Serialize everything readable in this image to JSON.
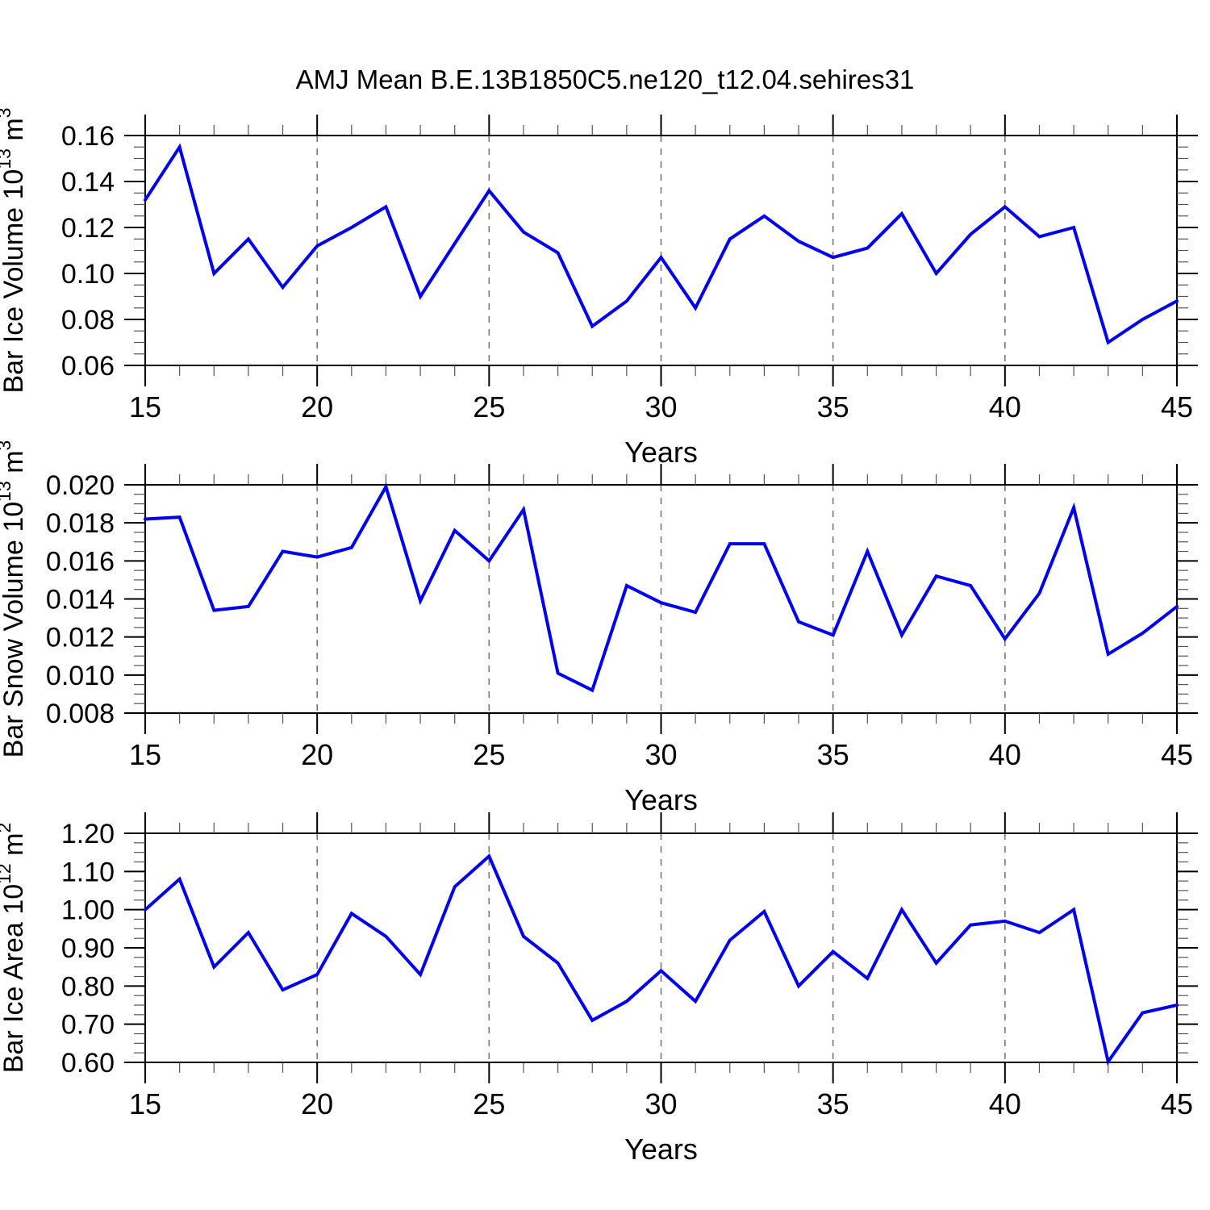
{
  "title": "AMJ Mean B.E.13B1850C5.ne120_t12.04.sehires31",
  "styles": {
    "line_color": "#0000ee",
    "grid_color": "#787878",
    "frame_color": "#000000",
    "minor_tick_color": "#555555",
    "background": "#ffffff"
  },
  "chart_data": [
    {
      "type": "line",
      "name": "bar-ice-volume",
      "ylabel_plain": "Bar Ice Volume 10^13 m^3",
      "ylabel_segments": [
        {
          "text": "Bar Ice Volume 10"
        },
        {
          "text": "13",
          "superscript": true
        },
        {
          "text": " m"
        },
        {
          "text": "3",
          "superscript": true
        }
      ],
      "xlabel": "Years",
      "xlim": [
        15,
        45
      ],
      "ylim": [
        0.06,
        0.16
      ],
      "xtick_values": [
        15,
        20,
        25,
        30,
        35,
        40,
        45
      ],
      "xtick_labels": [
        "15",
        "20",
        "25",
        "30",
        "35",
        "40",
        "45"
      ],
      "x_minor_step": 1,
      "grid_x_values": [
        20,
        25,
        30,
        35,
        40
      ],
      "ytick_values": [
        0.06,
        0.08,
        0.1,
        0.12,
        0.14,
        0.16
      ],
      "ytick_labels": [
        "0.06",
        "0.08",
        "0.10",
        "0.12",
        "0.14",
        "0.16"
      ],
      "y_minor_step": 0.005,
      "x": [
        15,
        16,
        17,
        18,
        19,
        20,
        21,
        22,
        23,
        24,
        25,
        26,
        27,
        28,
        29,
        30,
        31,
        32,
        33,
        34,
        35,
        36,
        37,
        38,
        39,
        40,
        41,
        42,
        43,
        44,
        45
      ],
      "values": [
        0.132,
        0.155,
        0.1,
        0.115,
        0.094,
        0.112,
        0.12,
        0.129,
        0.09,
        0.113,
        0.136,
        0.118,
        0.109,
        0.077,
        0.088,
        0.107,
        0.085,
        0.115,
        0.125,
        0.114,
        0.107,
        0.111,
        0.126,
        0.1,
        0.117,
        0.129,
        0.116,
        0.12,
        0.07,
        0.08,
        0.088
      ]
    },
    {
      "type": "line",
      "name": "bar-snow-volume",
      "ylabel_plain": "Bar Snow Volume 10^13 m^3",
      "ylabel_segments": [
        {
          "text": "Bar Snow Volume 10"
        },
        {
          "text": "13",
          "superscript": true
        },
        {
          "text": " m"
        },
        {
          "text": "3",
          "superscript": true
        }
      ],
      "xlabel": "Years",
      "xlim": [
        15,
        45
      ],
      "ylim": [
        0.008,
        0.02
      ],
      "xtick_values": [
        15,
        20,
        25,
        30,
        35,
        40,
        45
      ],
      "xtick_labels": [
        "15",
        "20",
        "25",
        "30",
        "35",
        "40",
        "45"
      ],
      "x_minor_step": 1,
      "grid_x_values": [
        20,
        25,
        30,
        35,
        40
      ],
      "ytick_values": [
        0.008,
        0.01,
        0.012,
        0.014,
        0.016,
        0.018,
        0.02
      ],
      "ytick_labels": [
        "0.008",
        "0.010",
        "0.012",
        "0.014",
        "0.016",
        "0.018",
        "0.020"
      ],
      "y_minor_step": 0.0005,
      "x": [
        15,
        16,
        17,
        18,
        19,
        20,
        21,
        22,
        23,
        24,
        25,
        26,
        27,
        28,
        29,
        30,
        31,
        32,
        33,
        34,
        35,
        36,
        37,
        38,
        39,
        40,
        41,
        42,
        43,
        44,
        45
      ],
      "values": [
        0.0182,
        0.0183,
        0.0134,
        0.0136,
        0.0165,
        0.0162,
        0.0167,
        0.0199,
        0.0139,
        0.0176,
        0.016,
        0.0187,
        0.0101,
        0.0092,
        0.0147,
        0.0138,
        0.0133,
        0.0169,
        0.0169,
        0.0128,
        0.0121,
        0.0165,
        0.0121,
        0.0152,
        0.0147,
        0.0119,
        0.0143,
        0.0188,
        0.0111,
        0.0122,
        0.0136
      ]
    },
    {
      "type": "line",
      "name": "bar-ice-area",
      "ylabel_plain": "Bar Ice Area 10^12 m^2",
      "ylabel_segments": [
        {
          "text": "Bar Ice Area 10"
        },
        {
          "text": "12",
          "superscript": true
        },
        {
          "text": " m"
        },
        {
          "text": "2",
          "superscript": true
        }
      ],
      "xlabel": "Years",
      "xlim": [
        15,
        45
      ],
      "ylim": [
        0.6,
        1.2
      ],
      "xtick_values": [
        15,
        20,
        25,
        30,
        35,
        40,
        45
      ],
      "xtick_labels": [
        "15",
        "20",
        "25",
        "30",
        "35",
        "40",
        "45"
      ],
      "x_minor_step": 1,
      "grid_x_values": [
        20,
        25,
        30,
        35,
        40
      ],
      "ytick_values": [
        0.6,
        0.7,
        0.8,
        0.9,
        1.0,
        1.1,
        1.2
      ],
      "ytick_labels": [
        "0.60",
        "0.70",
        "0.80",
        "0.90",
        "1.00",
        "1.10",
        "1.20"
      ],
      "y_minor_step": 0.025,
      "x": [
        15,
        16,
        17,
        18,
        19,
        20,
        21,
        22,
        23,
        24,
        25,
        26,
        27,
        28,
        29,
        30,
        31,
        32,
        33,
        34,
        35,
        36,
        37,
        38,
        39,
        40,
        41,
        42,
        43,
        44,
        45
      ],
      "values": [
        1.0,
        1.08,
        0.85,
        0.94,
        0.79,
        0.83,
        0.99,
        0.93,
        0.83,
        1.06,
        1.14,
        0.93,
        0.86,
        0.71,
        0.76,
        0.84,
        0.76,
        0.92,
        0.995,
        0.8,
        0.89,
        0.82,
        1.0,
        0.86,
        0.96,
        0.97,
        0.94,
        1.0,
        0.602,
        0.73,
        0.75
      ]
    }
  ]
}
